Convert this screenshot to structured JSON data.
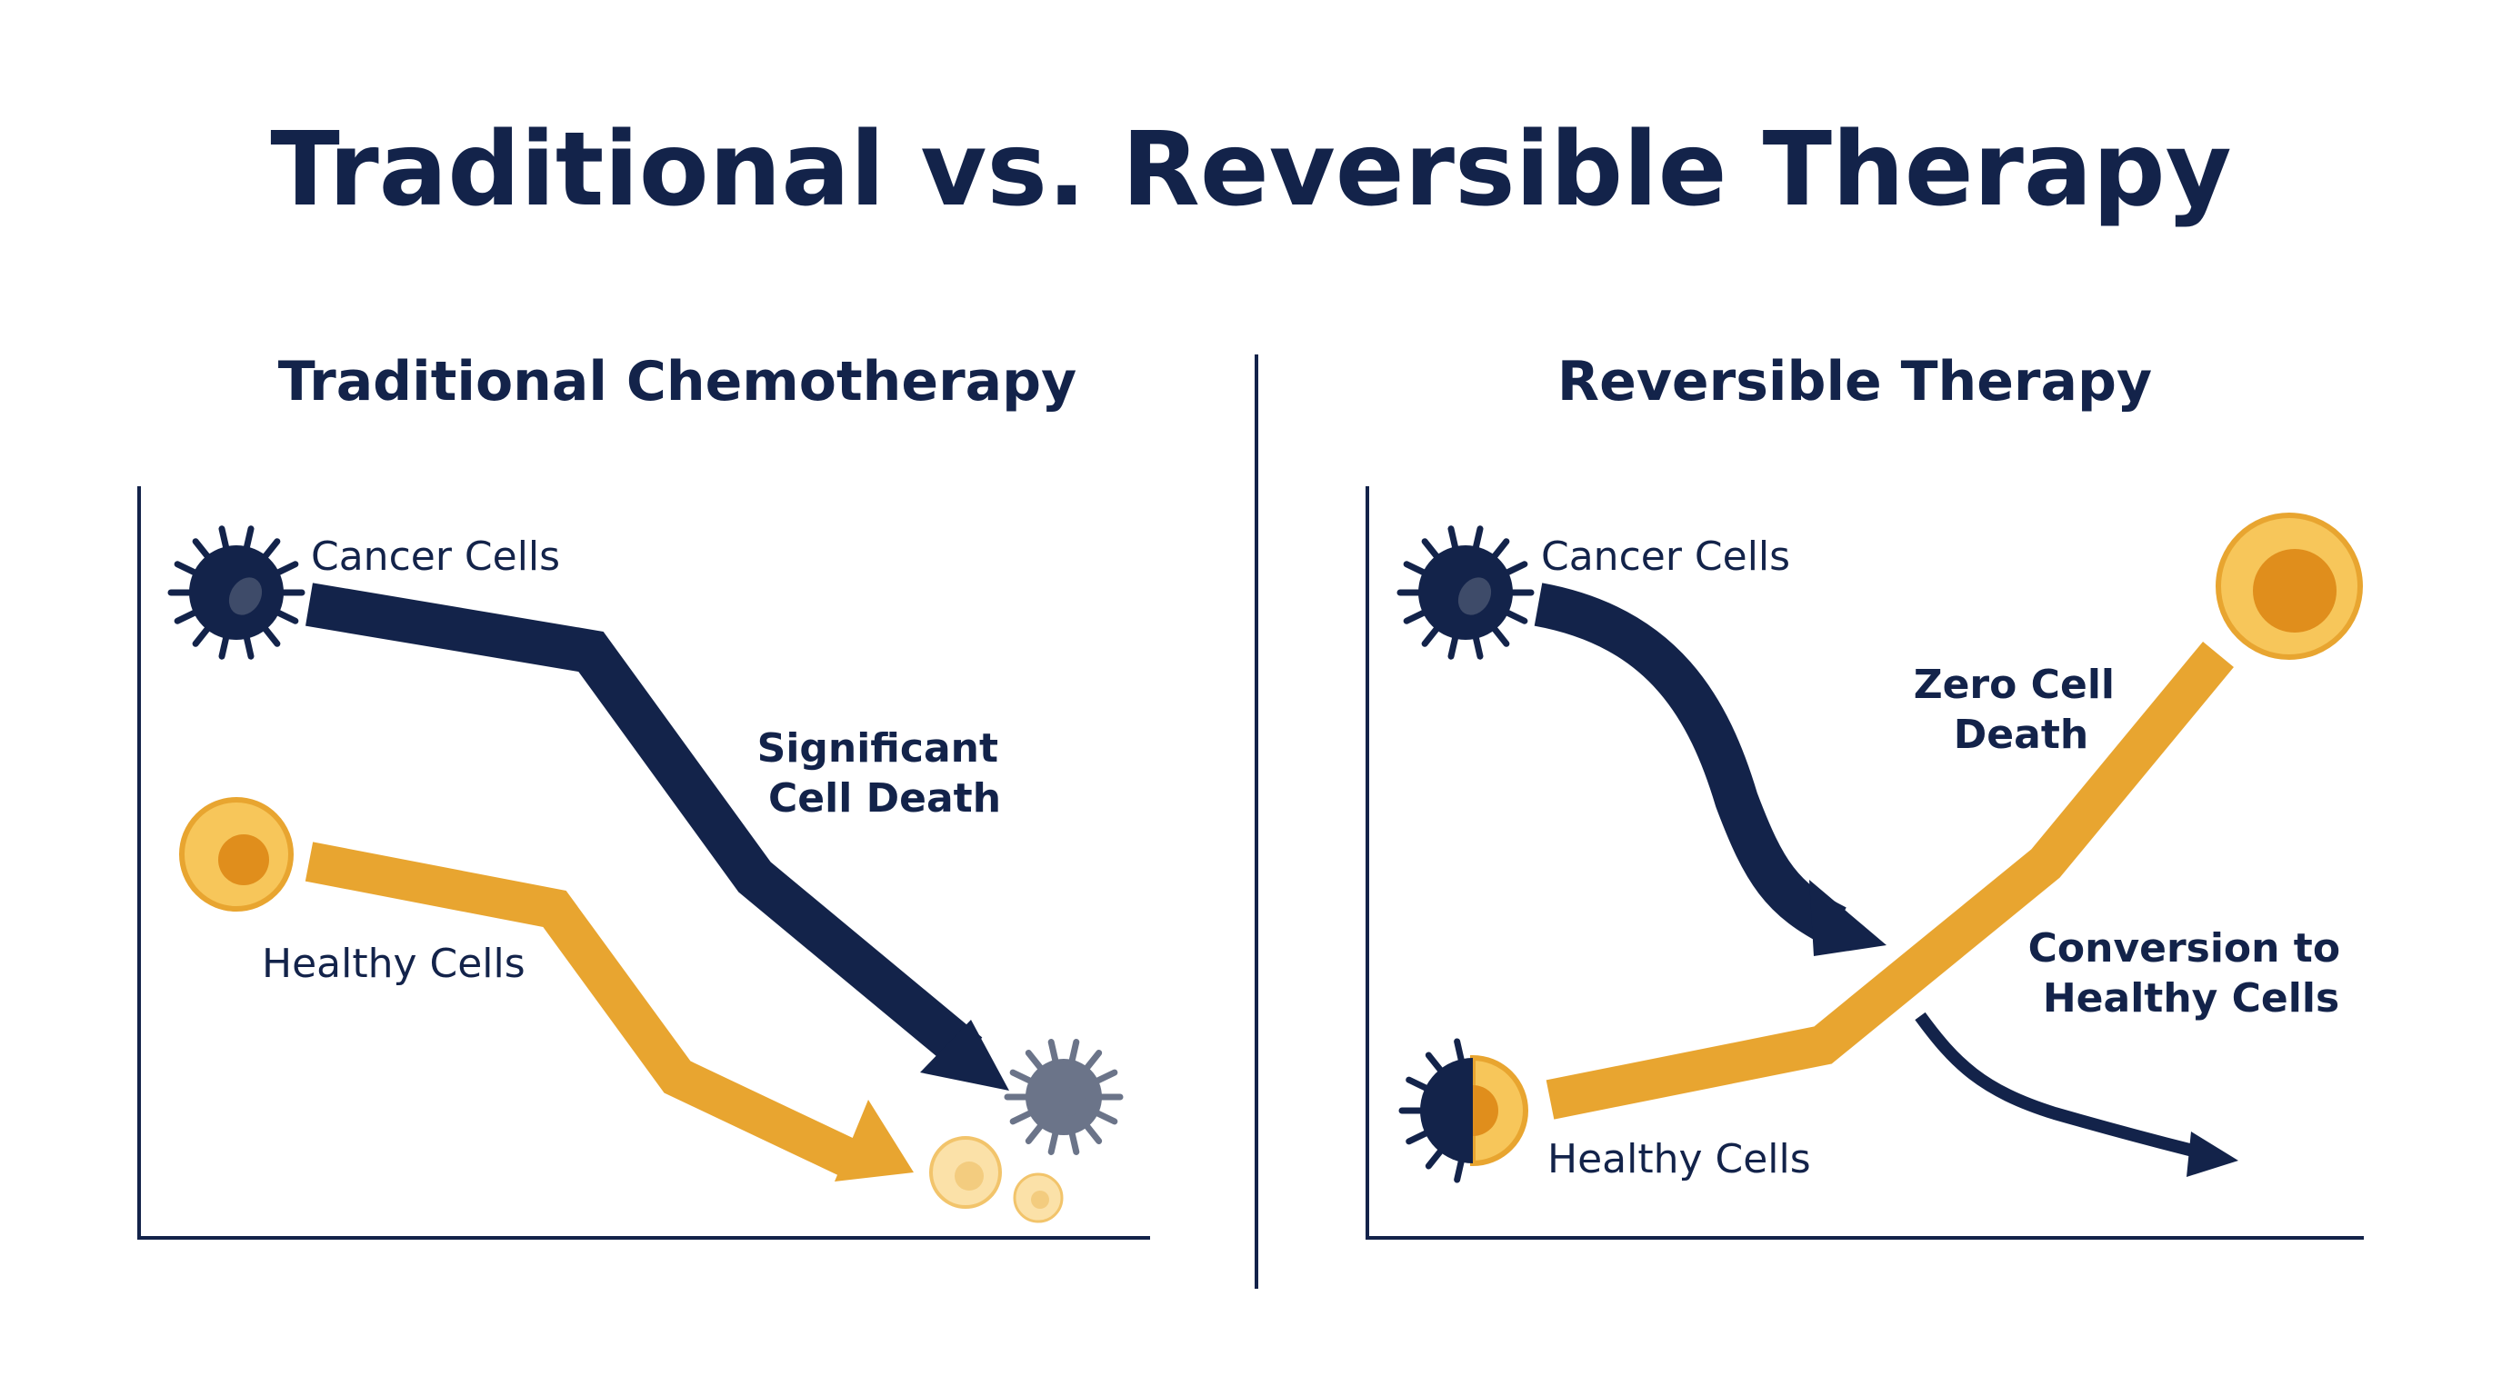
{
  "title": "Traditional vs. Reversible Therapy",
  "colors": {
    "navy": "#13234a",
    "gold": "#e8a530",
    "gold_light": "#f7c65a",
    "gold_pale": "#fbe1a8",
    "gray_cell": "#6b7489"
  },
  "left_panel": {
    "title": "Traditional Chemotherapy",
    "cancer_label": "Cancer Cells",
    "healthy_label": "Healthy Cells",
    "annotation_line1": "Significant",
    "annotation_line2": "Cell Death"
  },
  "right_panel": {
    "title": "Reversible Therapy",
    "cancer_label": "Cancer Cells",
    "healthy_label": "Healthy Cells",
    "annotation1_line1": "Zero Cell",
    "annotation1_line2": "Death",
    "annotation2_line1": "Conversion to",
    "annotation2_line2": "Healthy Cells"
  },
  "icons": [
    "cancer-cell-icon",
    "healthy-cell-icon",
    "dying-cancer-cell-icon",
    "faded-healthy-cell-icon",
    "half-converted-cell-icon",
    "large-healthy-cell-icon"
  ]
}
